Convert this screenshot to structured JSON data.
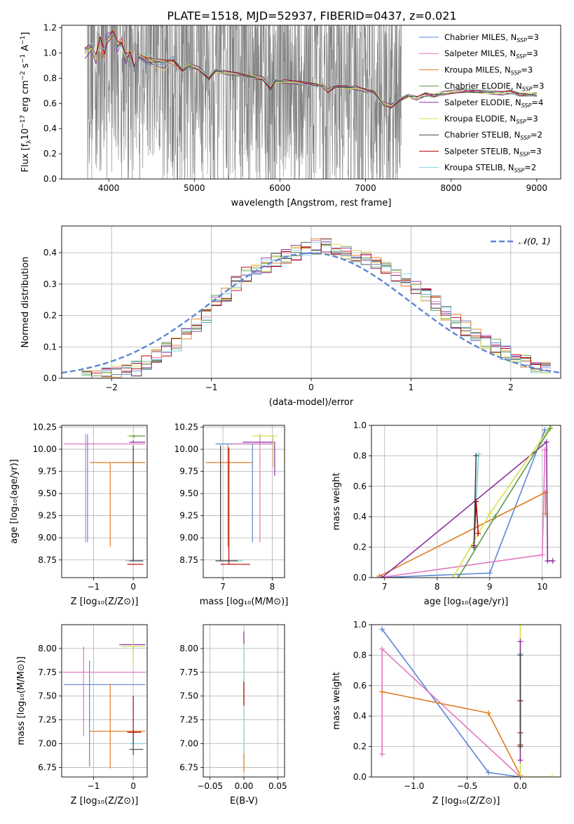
{
  "figure_title": "PLATE=1518, MJD=52937, FIBERID=0437, z=0.021",
  "colors": {
    "chabrier_miles": "#5b87d4",
    "salpeter_miles": "#e377c2",
    "kroupa_miles": "#e07b1f",
    "chabrier_elodie": "#5a9a4a",
    "salpeter_elodie": "#8e2ea1",
    "kroupa_elodie": "#d8e04a",
    "chabrier_stelib": "#444444",
    "salpeter_stelib": "#b30000",
    "kroupa_stelib": "#7fd3e0",
    "data": "#808080",
    "normal": "#5b87d4",
    "grid": "#b0b0b0"
  },
  "chart_data": [
    {
      "id": "spectrum",
      "type": "line",
      "title": "PLATE=1518, MJD=52937, FIBERID=0437, z=0.021",
      "xlabel": "wavelength [Angstrom, rest frame]",
      "ylabel_pre": "Flux [f",
      "ylabel_sub": "λ",
      "ylabel_post": "10",
      "ylabel_sup1": "−17",
      "ylabel_rest": " erg cm",
      "ylabel_sup2": "−2",
      "ylabel_s": " s",
      "ylabel_sup3": "−1",
      "ylabel_a": " A",
      "ylabel_sup4": "−1",
      "ylabel_end": "]",
      "xlim": [
        3450,
        9280
      ],
      "ylim": [
        0,
        1.22
      ],
      "xticks": [
        4000,
        5000,
        6000,
        7000,
        8000,
        9000
      ],
      "yticks": [
        0.0,
        0.2,
        0.4,
        0.6,
        0.8,
        1.0,
        1.2
      ],
      "data_range": [
        3750,
        7420
      ],
      "legend": [
        {
          "name": "Chabrier MILES",
          "nssp": "3",
          "color": "#5b87d4"
        },
        {
          "name": "Salpeter MILES",
          "nssp": "3",
          "color": "#e377c2"
        },
        {
          "name": "Kroupa MILES",
          "nssp": "3",
          "color": "#e07b1f"
        },
        {
          "name": "Chabrier ELODIE",
          "nssp": "3",
          "color": "#5a9a4a"
        },
        {
          "name": "Salpeter ELODIE",
          "nssp": "4",
          "color": "#8e2ea1"
        },
        {
          "name": "Kroupa ELODIE",
          "nssp": "3",
          "color": "#d8e04a"
        },
        {
          "name": "Chabrier STELIB",
          "nssp": "2",
          "color": "#444444"
        },
        {
          "name": "Salpeter STELIB",
          "nssp": "3",
          "color": "#b30000"
        },
        {
          "name": "Kroupa STELIB",
          "nssp": "2",
          "color": "#7fd3e0"
        }
      ],
      "model_continuum": [
        [
          3720,
          1.0
        ],
        [
          3800,
          1.05
        ],
        [
          3850,
          0.95
        ],
        [
          3900,
          1.1
        ],
        [
          3950,
          1.0
        ],
        [
          3980,
          1.12
        ],
        [
          4050,
          1.15
        ],
        [
          4100,
          1.05
        ],
        [
          4150,
          1.08
        ],
        [
          4200,
          0.95
        ],
        [
          4250,
          1.0
        ],
        [
          4300,
          0.88
        ],
        [
          4350,
          0.98
        ],
        [
          4450,
          0.95
        ],
        [
          4550,
          0.92
        ],
        [
          4650,
          0.9
        ],
        [
          4750,
          0.93
        ],
        [
          4860,
          0.86
        ],
        [
          4950,
          0.9
        ],
        [
          5050,
          0.88
        ],
        [
          5170,
          0.8
        ],
        [
          5250,
          0.86
        ],
        [
          5400,
          0.84
        ],
        [
          5500,
          0.83
        ],
        [
          5600,
          0.82
        ],
        [
          5700,
          0.81
        ],
        [
          5800,
          0.8
        ],
        [
          5890,
          0.72
        ],
        [
          5950,
          0.78
        ],
        [
          6100,
          0.77
        ],
        [
          6250,
          0.76
        ],
        [
          6400,
          0.75
        ],
        [
          6500,
          0.74
        ],
        [
          6560,
          0.7
        ],
        [
          6650,
          0.74
        ],
        [
          6800,
          0.73
        ],
        [
          6900,
          0.72
        ],
        [
          7000,
          0.7
        ],
        [
          7100,
          0.69
        ],
        [
          7200,
          0.6
        ],
        [
          7300,
          0.58
        ],
        [
          7400,
          0.63
        ],
        [
          7500,
          0.66
        ],
        [
          7600,
          0.64
        ],
        [
          7700,
          0.67
        ],
        [
          7800,
          0.66
        ],
        [
          7900,
          0.68
        ],
        [
          8100,
          0.7
        ],
        [
          8200,
          0.7
        ],
        [
          8400,
          0.69
        ],
        [
          8600,
          0.68
        ],
        [
          8700,
          0.69
        ],
        [
          8800,
          0.67
        ],
        [
          9000,
          0.67
        ]
      ]
    },
    {
      "id": "residuals",
      "type": "line",
      "xlabel": "(data-model)/error",
      "ylabel": "Normed distribution",
      "xlim": [
        -2.5,
        2.5
      ],
      "ylim": [
        0,
        0.485
      ],
      "xticks": [
        -2,
        -1,
        0,
        1,
        2
      ],
      "yticks": [
        0.0,
        0.1,
        0.2,
        0.3,
        0.4
      ],
      "legend": "𝒩(0, 1)",
      "bin_edges_start": -2.3,
      "bin_width": 0.1,
      "hist_base": [
        0.0,
        0.01,
        0.01,
        0.02,
        0.02,
        0.03,
        0.05,
        0.07,
        0.09,
        0.11,
        0.14,
        0.17,
        0.2,
        0.24,
        0.27,
        0.3,
        0.33,
        0.35,
        0.36,
        0.38,
        0.39,
        0.4,
        0.41,
        0.42,
        0.42,
        0.41,
        0.4,
        0.39,
        0.38,
        0.37,
        0.35,
        0.33,
        0.31,
        0.29,
        0.26,
        0.24,
        0.21,
        0.18,
        0.16,
        0.14,
        0.12,
        0.1,
        0.08,
        0.07,
        0.05,
        0.04,
        0.03
      ]
    },
    {
      "id": "age_vs_z",
      "type": "scatter",
      "xlabel": "Z [log₁₀(Z/Z⊙)]",
      "ylabel": "age  [log₁₀(age/yr)]",
      "xlim": [
        -1.8,
        0.35
      ],
      "ylim": [
        8.55,
        10.27
      ],
      "xticks": [
        -1,
        0
      ],
      "yticks": [
        8.75,
        9.0,
        9.25,
        9.5,
        9.75,
        10.0,
        10.25
      ],
      "bars": [
        {
          "x": -1.2,
          "y": 10.06,
          "x0": -1.75,
          "x1": 0.3,
          "y0": 8.95,
          "y1": 10.17,
          "color": "#e377c2"
        },
        {
          "x": -1.15,
          "y": 10.06,
          "x0": -1.15,
          "x1": -1.15,
          "y0": 8.95,
          "y1": 10.17,
          "color": "#5b87d4"
        },
        {
          "x": -0.58,
          "y": 9.85,
          "x0": -1.1,
          "x1": 0.3,
          "y0": 8.9,
          "y1": 9.85,
          "color": "#e07b1f"
        },
        {
          "x": 0.0,
          "y": 10.08,
          "x0": -0.1,
          "x1": 0.3,
          "y0": 10.08,
          "y1": 10.1,
          "color": "#8e2ea1"
        },
        {
          "x": 0.0,
          "y": 10.15,
          "x0": -0.15,
          "x1": 0.3,
          "y0": 10.12,
          "y1": 10.17,
          "color": "#d8e04a"
        },
        {
          "x": 0.02,
          "y": 10.15,
          "x0": -0.1,
          "x1": 0.3,
          "y0": 10.13,
          "y1": 10.16,
          "color": "#5a9a4a"
        },
        {
          "x": 0.0,
          "y": 8.74,
          "x0": -0.2,
          "x1": 0.25,
          "y0": 8.73,
          "y1": 10.05,
          "color": "#7fd3e0"
        },
        {
          "x": 0.0,
          "y": 8.7,
          "x0": -0.15,
          "x1": 0.25,
          "y0": 8.7,
          "y1": 8.7,
          "color": "#b30000"
        },
        {
          "x": 0.0,
          "y": 8.74,
          "x0": -0.1,
          "x1": 0.25,
          "y0": 8.74,
          "y1": 10.04,
          "color": "#444444"
        }
      ]
    },
    {
      "id": "age_vs_mass",
      "type": "scatter",
      "xlabel": "mass [log₁₀(M/M⊙)]",
      "xlim": [
        6.6,
        8.25
      ],
      "ylim": [
        8.55,
        10.27
      ],
      "xticks": [
        7,
        8
      ],
      "yticks": [
        8.75,
        9.0,
        9.25,
        9.5,
        9.75,
        10.0,
        10.25
      ],
      "bars": [
        {
          "x": 7.6,
          "y": 10.06,
          "x0": 6.85,
          "x1": 8.0,
          "y0": 8.95,
          "y1": 10.06,
          "color": "#5b87d4"
        },
        {
          "x": 7.75,
          "y": 10.06,
          "x0": 7.2,
          "x1": 8.0,
          "y0": 8.95,
          "y1": 10.17,
          "color": "#e377c2"
        },
        {
          "x": 7.1,
          "y": 9.85,
          "x0": 6.65,
          "x1": 7.6,
          "y0": 8.9,
          "y1": 10.05,
          "color": "#e07b1f"
        },
        {
          "x": 8.05,
          "y": 10.08,
          "x0": 7.4,
          "x1": 8.05,
          "y0": 9.7,
          "y1": 10.08,
          "color": "#8e2ea1"
        },
        {
          "x": 8.02,
          "y": 10.15,
          "x0": 7.6,
          "x1": 8.1,
          "y0": 9.8,
          "y1": 10.16,
          "color": "#d8e04a"
        },
        {
          "x": 6.95,
          "y": 8.74,
          "x0": 6.85,
          "x1": 7.4,
          "y0": 8.73,
          "y1": 10.05,
          "color": "#7fd3e0"
        },
        {
          "x": 7.12,
          "y": 8.7,
          "x0": 6.95,
          "x1": 7.55,
          "y0": 8.7,
          "y1": 10.02,
          "color": "#b30000"
        },
        {
          "x": 6.95,
          "y": 8.74,
          "x0": 6.85,
          "x1": 7.3,
          "y0": 8.74,
          "y1": 10.04,
          "color": "#444444"
        }
      ]
    },
    {
      "id": "weight_vs_age",
      "type": "line",
      "xlabel": "age  [log₁₀(age/yr)]",
      "ylabel": "mass weight",
      "xlim": [
        6.75,
        10.35
      ],
      "ylim": [
        0,
        1.0
      ],
      "xticks": [
        7,
        8,
        9,
        10
      ],
      "yticks": [
        0.0,
        0.2,
        0.4,
        0.6,
        0.8,
        1.0
      ],
      "series": [
        {
          "color": "#5b87d4",
          "x": [
            6.9,
            9.0,
            10.05
          ],
          "y": [
            0.0,
            0.03,
            0.97
          ]
        },
        {
          "color": "#e377c2",
          "x": [
            6.9,
            10.0,
            10.05
          ],
          "y": [
            0.0,
            0.15,
            0.84
          ]
        },
        {
          "color": "#e07b1f",
          "x": [
            6.9,
            10.06,
            10.06
          ],
          "y": [
            0.01,
            0.56,
            0.42
          ]
        },
        {
          "color": "#8e2ea1",
          "x": [
            6.95,
            10.08,
            10.1,
            10.2
          ],
          "y": [
            0.0,
            0.89,
            0.11,
            0.11
          ]
        },
        {
          "color": "#d8e04a",
          "x": [
            8.3,
            9.0,
            10.17
          ],
          "y": [
            0.0,
            0.42,
            1.0
          ]
        },
        {
          "color": "#5a9a4a",
          "x": [
            8.4,
            9.1,
            10.15
          ],
          "y": [
            0.0,
            0.4,
            0.98
          ]
        },
        {
          "color": "#7fd3e0",
          "x": [
            8.7,
            8.74,
            8.79
          ],
          "y": [
            0.2,
            0.5,
            0.81
          ]
        },
        {
          "color": "#b30000",
          "x": [
            8.7,
            8.74,
            8.78
          ],
          "y": [
            0.21,
            0.5,
            0.29
          ]
        },
        {
          "color": "#444444",
          "x": [
            8.7,
            8.74
          ],
          "y": [
            0.2,
            0.8
          ]
        }
      ]
    },
    {
      "id": "mass_vs_z",
      "type": "scatter",
      "xlabel": "Z [log₁₀(Z/Z⊙)]",
      "ylabel": "mass [log₁₀(M/M⊙)]",
      "xlim": [
        -1.8,
        0.35
      ],
      "ylim": [
        6.65,
        8.25
      ],
      "xticks": [
        -1,
        0
      ],
      "yticks": [
        6.75,
        7.0,
        7.25,
        7.5,
        7.75,
        8.0
      ],
      "bars": [
        {
          "x": -1.1,
          "y": 7.62,
          "x0": -1.75,
          "x1": 0.3,
          "y0": 6.76,
          "y1": 7.87,
          "color": "#5b87d4"
        },
        {
          "x": -1.25,
          "y": 7.75,
          "x0": -1.75,
          "x1": 0.3,
          "y0": 7.08,
          "y1": 8.02,
          "color": "#e377c2"
        },
        {
          "x": -0.58,
          "y": 7.13,
          "x0": -1.1,
          "x1": 0.3,
          "y0": 6.74,
          "y1": 7.63,
          "color": "#e07b1f"
        },
        {
          "x": 0.0,
          "y": 8.04,
          "x0": -0.35,
          "x1": 0.3,
          "y0": 7.95,
          "y1": 8.06,
          "color": "#8e2ea1"
        },
        {
          "x": 0.0,
          "y": 8.02,
          "x0": -0.3,
          "x1": 0.3,
          "y0": 7.8,
          "y1": 8.1,
          "color": "#d8e04a"
        },
        {
          "x": 0.0,
          "y": 7.0,
          "x0": -0.1,
          "x1": 0.3,
          "y0": 6.88,
          "y1": 7.12,
          "color": "#7fd3e0"
        },
        {
          "x": 0.0,
          "y": 7.12,
          "x0": -0.15,
          "x1": 0.2,
          "y0": 7.0,
          "y1": 7.5,
          "color": "#b30000"
        },
        {
          "x": 0.0,
          "y": 6.94,
          "x0": -0.1,
          "x1": 0.25,
          "y0": 6.88,
          "y1": 7.12,
          "color": "#444444"
        }
      ]
    },
    {
      "id": "mass_vs_ebv",
      "type": "scatter",
      "xlabel": "E(B-V)",
      "xlim": [
        -0.06,
        0.06
      ],
      "ylim": [
        6.65,
        8.25
      ],
      "xticks": [
        -0.05,
        0.0,
        0.05
      ],
      "xtick_labels": [
        "−0.05",
        "0.00",
        "0.05"
      ],
      "yticks": [
        6.75,
        7.0,
        7.25,
        7.5,
        7.75,
        8.0
      ],
      "bars": [
        {
          "x": 0.0,
          "y": 7.5,
          "y0": 6.7,
          "y1": 8.18,
          "color": "#d8e04a"
        },
        {
          "x": 0.0,
          "y": 7.5,
          "y0": 6.8,
          "y1": 8.1,
          "color": "#7fd3e0"
        },
        {
          "x": 0.0,
          "y": 7.5,
          "y0": 7.4,
          "y1": 7.65,
          "color": "#b30000"
        },
        {
          "x": 0.0,
          "y": 8.1,
          "y0": 8.05,
          "y1": 8.18,
          "color": "#8e2ea1"
        },
        {
          "x": 0.0,
          "y": 6.8,
          "y0": 6.7,
          "y1": 6.9,
          "color": "#e07b1f"
        }
      ]
    },
    {
      "id": "weight_vs_z",
      "type": "line",
      "xlabel": "Z [log₁₀(Z/Z⊙)]",
      "ylabel": "mass weight",
      "xlim": [
        -1.4,
        0.38
      ],
      "ylim": [
        0,
        1.0
      ],
      "xticks": [
        -1.0,
        -0.5,
        0.0
      ],
      "xtick_labels": [
        "−1.0",
        "−0.5",
        "0.0"
      ],
      "yticks": [
        0.0,
        0.2,
        0.4,
        0.6,
        0.8,
        1.0
      ],
      "series": [
        {
          "color": "#5b87d4",
          "x": [
            -1.3,
            -0.3,
            0.0
          ],
          "y": [
            0.97,
            0.03,
            0.0
          ]
        },
        {
          "color": "#e377c2",
          "x": [
            -1.3,
            -1.3,
            0.0
          ],
          "y": [
            0.15,
            0.84,
            0.0
          ]
        },
        {
          "color": "#e07b1f",
          "x": [
            -1.3,
            -0.3,
            0.0
          ],
          "y": [
            0.56,
            0.42,
            0.01
          ]
        },
        {
          "color": "#d8e04a",
          "x": [
            0.0,
            0.0,
            0.3
          ],
          "y": [
            1.0,
            0.0,
            0.0
          ]
        },
        {
          "color": "#7fd3e0",
          "x": [
            0.0,
            0.0
          ],
          "y": [
            0.81,
            0.2
          ]
        },
        {
          "color": "#b30000",
          "x": [
            0.0,
            0.0,
            0.0
          ],
          "y": [
            0.5,
            0.29,
            0.21
          ]
        },
        {
          "color": "#8e2ea1",
          "x": [
            0.0,
            0.0
          ],
          "y": [
            0.89,
            0.11
          ]
        },
        {
          "color": "#444444",
          "x": [
            0.0,
            0.0
          ],
          "y": [
            0.8,
            0.2
          ]
        }
      ]
    }
  ]
}
